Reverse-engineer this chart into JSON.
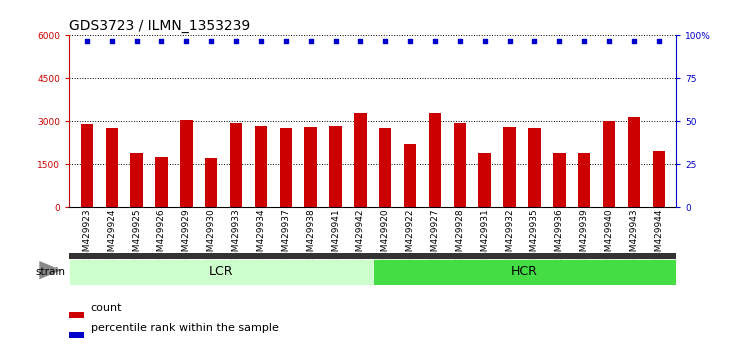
{
  "title": "GDS3723 / ILMN_1353239",
  "categories": [
    "GSM429923",
    "GSM429924",
    "GSM429925",
    "GSM429926",
    "GSM429929",
    "GSM429930",
    "GSM429933",
    "GSM429934",
    "GSM429937",
    "GSM429938",
    "GSM429941",
    "GSM429942",
    "GSM429920",
    "GSM429922",
    "GSM429927",
    "GSM429928",
    "GSM429931",
    "GSM429932",
    "GSM429935",
    "GSM429936",
    "GSM429939",
    "GSM429940",
    "GSM429943",
    "GSM429944"
  ],
  "bar_values": [
    2900,
    2750,
    1900,
    1750,
    3050,
    1700,
    2950,
    2850,
    2750,
    2800,
    2850,
    3300,
    2750,
    2200,
    3300,
    2950,
    1900,
    2800,
    2750,
    1900,
    1900,
    3000,
    3150,
    1950
  ],
  "percentile_values": [
    97,
    97,
    97,
    97,
    97,
    97,
    97,
    97,
    97,
    97,
    97,
    97,
    97,
    97,
    97,
    97,
    97,
    97,
    97,
    97,
    97,
    97,
    97,
    97
  ],
  "lcr_count": 12,
  "hcr_count": 12,
  "bar_color": "#cc0000",
  "dot_color": "#0000cc",
  "lcr_color": "#ccffcc",
  "hcr_color": "#44dd44",
  "group_label_lcr": "LCR",
  "group_label_hcr": "HCR",
  "strain_label": "strain",
  "ylim_left": [
    0,
    6000
  ],
  "ylim_right": [
    0,
    100
  ],
  "yticks_left": [
    0,
    1500,
    3000,
    4500,
    6000
  ],
  "yticks_right": [
    0,
    25,
    50,
    75,
    100
  ],
  "yticklabels_right": [
    "0",
    "25",
    "50",
    "75",
    "100%"
  ],
  "grid_color": "black",
  "left_axis_color": "#cc0000",
  "right_axis_color": "#0000cc",
  "bg_color": "#ffffff",
  "legend_count_label": "count",
  "legend_pct_label": "percentile rank within the sample",
  "title_fontsize": 10,
  "tick_fontsize": 6.5,
  "bar_tick_bg": "#dddddd",
  "strain_arrow_color": "#888888",
  "separator_color": "#333333"
}
